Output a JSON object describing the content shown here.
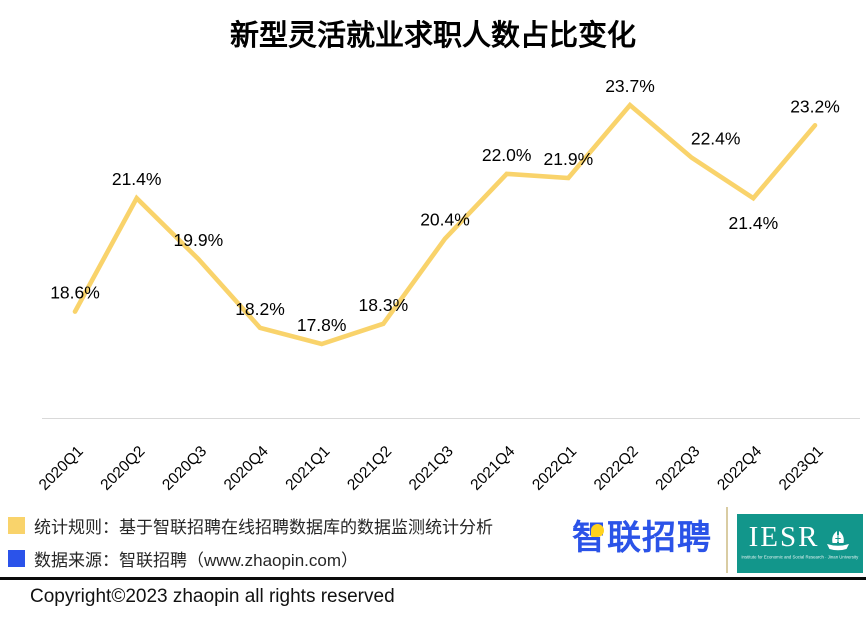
{
  "title": "新型灵活就业求职人数占比变化",
  "chart_data": {
    "type": "line",
    "title": "新型灵活就业求职人数占比变化",
    "categories": [
      "2020Q1",
      "2020Q2",
      "2020Q3",
      "2020Q4",
      "2021Q1",
      "2021Q2",
      "2021Q3",
      "2021Q4",
      "2022Q1",
      "2022Q2",
      "2022Q3",
      "2022Q4",
      "2023Q1"
    ],
    "values": [
      18.6,
      21.4,
      19.9,
      18.2,
      17.8,
      18.3,
      20.4,
      22.0,
      21.9,
      23.7,
      22.4,
      21.4,
      23.2
    ],
    "data_labels": [
      "18.6%",
      "21.4%",
      "19.9%",
      "18.2%",
      "17.8%",
      "18.3%",
      "20.4%",
      "22.0%",
      "21.9%",
      "23.7%",
      "22.4%",
      "21.4%",
      "23.2%"
    ],
    "label_below_indices": [
      11
    ],
    "xlabel": "",
    "ylabel": "",
    "ylim": [
      17.0,
      24.5
    ],
    "grid": false,
    "legend_position": "none",
    "line_color": "#F9D36B",
    "axis_color": "#D9D9D9"
  },
  "footer": {
    "legend": [
      {
        "swatch_color": "#F9D36B",
        "text": "统计规则：基于智联招聘在线招聘数据库的数据监测统计分析"
      },
      {
        "swatch_color": "#2B53EA",
        "text": "数据来源：智联招聘（www.zhaopin.com）"
      }
    ],
    "zhaopin_logo_text": "智联招聘",
    "iesr_logo_text": "IESR",
    "iesr_tagline": "Institute for Economic and Social Research · Jinan University",
    "copyright": "Copyright©2023 zhaopin all rights reserved"
  },
  "colors": {
    "line_yellow": "#F9D36B",
    "legend_blue": "#2B53EA",
    "zhaopin_blue": "#2B53E8",
    "zhaopin_yellow": "#FFD21E",
    "iesr_teal": "#12968B",
    "logo_divider": "#D9CCA3",
    "axis_gray": "#D9D9D9"
  }
}
